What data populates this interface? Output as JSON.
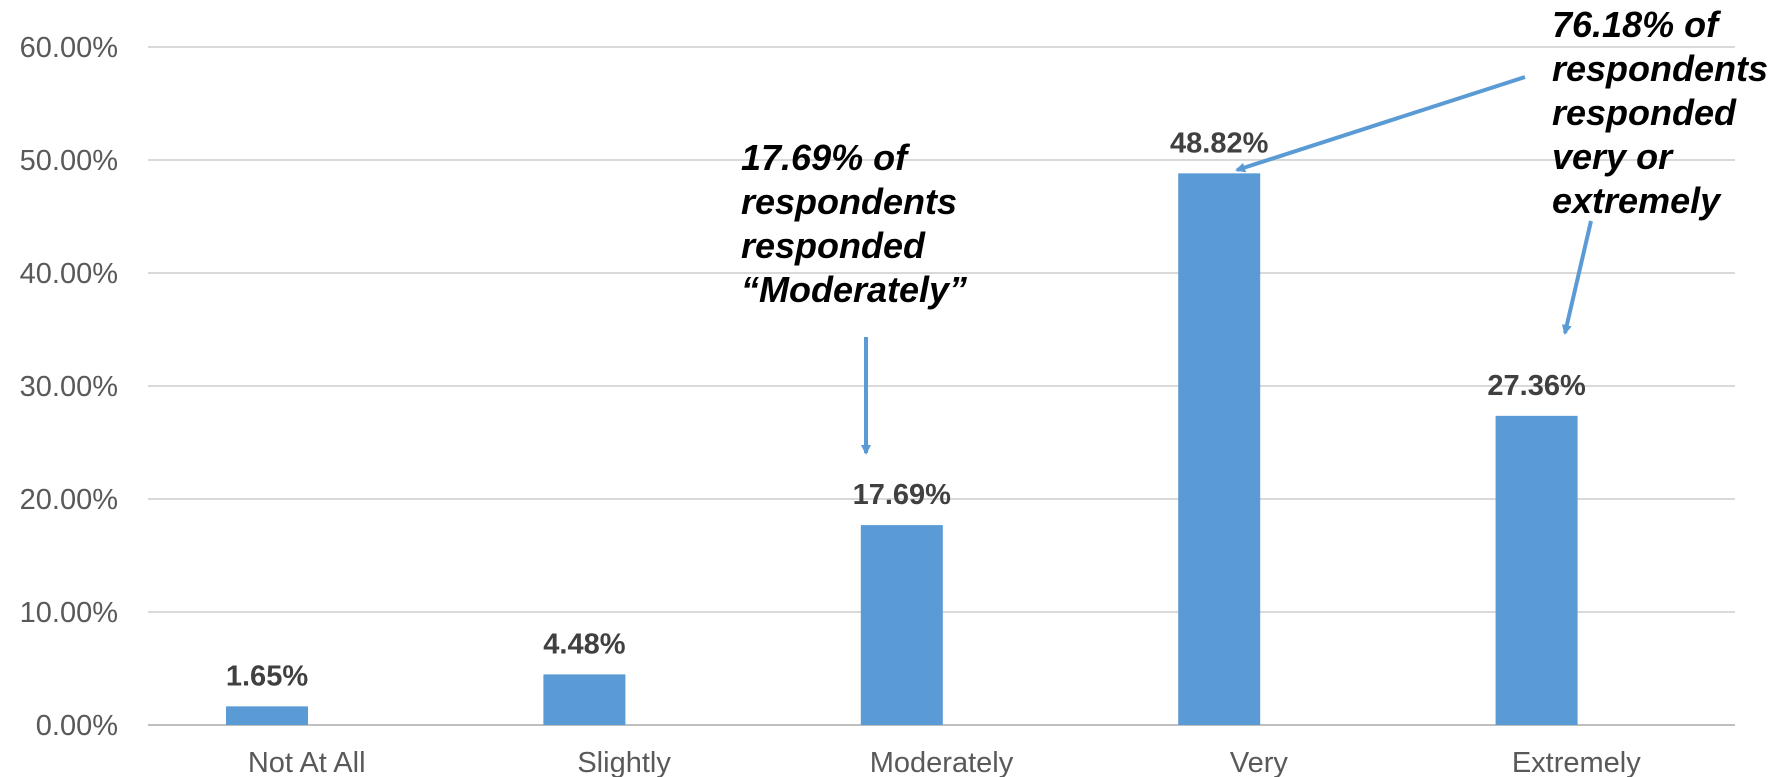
{
  "chart_data": {
    "type": "bar",
    "categories": [
      "Not At All",
      "Slightly",
      "Moderately",
      "Very",
      "Extremely"
    ],
    "values": [
      1.65,
      4.48,
      17.69,
      48.82,
      27.36
    ],
    "value_labels": [
      "1.65%",
      "4.48%",
      "17.69%",
      "48.82%",
      "27.36%"
    ],
    "y_ticks": [
      "0.00%",
      "10.00%",
      "20.00%",
      "30.00%",
      "40.00%",
      "50.00%",
      "60.00%"
    ],
    "ylim": [
      0,
      60
    ],
    "grid": true,
    "bar_color": "#5b9bd5",
    "arrow_color": "#5b9bd5",
    "annotations": [
      {
        "text": "17.69% of\nrespondents\nresponded\n“Moderately”",
        "target": "Moderately"
      },
      {
        "text": "76.18% of\nrespondents\nresponded\nvery or\nextremely",
        "targets": [
          "Very",
          "Extremely"
        ]
      }
    ]
  }
}
